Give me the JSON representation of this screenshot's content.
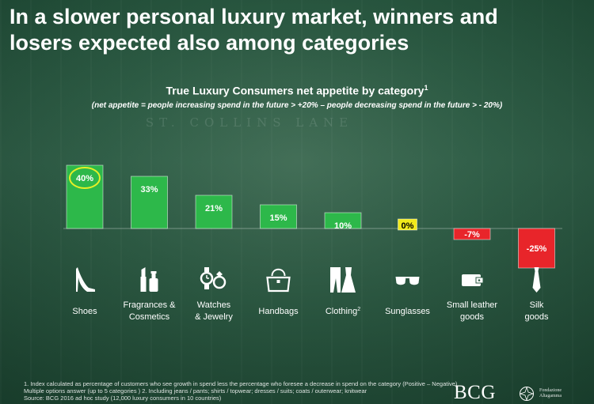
{
  "slide": {
    "title_line1": "In a slower personal luxury market, winners and",
    "title_line2": "losers expected also among categories",
    "background_text": "ST. COLLINS LANE"
  },
  "chart_data": {
    "type": "bar",
    "title": "True Luxury Consumers net appetite by category",
    "title_footnote": "1",
    "subtitle": "(net appetite = people increasing spend in the future > +20% – people decreasing spend in the future > - 20%)",
    "categories": [
      {
        "label_line1": "Shoes",
        "label_line2": "",
        "footnote": "",
        "icon": "high-heel-shoe-icon"
      },
      {
        "label_line1": "Fragrances &",
        "label_line2": "Cosmetics",
        "footnote": "",
        "icon": "lipstick-perfume-icon"
      },
      {
        "label_line1": "Watches",
        "label_line2": "& Jewelry",
        "footnote": "",
        "icon": "watch-ring-icon"
      },
      {
        "label_line1": "Handbags",
        "label_line2": "",
        "footnote": "",
        "icon": "handbag-icon"
      },
      {
        "label_line1": "Clothing",
        "label_line2": "",
        "footnote": "2",
        "icon": "jeans-dress-icon"
      },
      {
        "label_line1": "Sunglasses",
        "label_line2": "",
        "footnote": "",
        "icon": "sunglasses-icon"
      },
      {
        "label_line1": "Small leather",
        "label_line2": "goods",
        "footnote": "",
        "icon": "wallet-icon"
      },
      {
        "label_line1": "Silk",
        "label_line2": "goods",
        "footnote": "",
        "icon": "tie-icon"
      }
    ],
    "values": [
      40,
      33,
      21,
      15,
      10,
      0,
      -7,
      -25
    ],
    "value_labels": [
      "40%",
      "33%",
      "21%",
      "15%",
      "10%",
      "0%",
      "-7%",
      "-25%"
    ],
    "highlighted_value_index": 0,
    "colors": {
      "positive": "#2db84a",
      "zero": "#f2ea1a",
      "negative": "#e8252a",
      "highlight_circle": "#e6ef28"
    }
  },
  "footnotes": {
    "line1": "1. Index calculated as percentage of customers who see growth in spend less the percentage who foresee a decrease in spend on the category (Positive – Negative)",
    "line2": "Multiple options answer (up to 5 categories )   2. Including jeans / pants; shirts / topwear; dresses / suits; coats / outerwear; knitwear",
    "line3": "Source: BCG 2016 ad hoc study (12,000 luxury consumers in 10 countries)"
  },
  "logos": {
    "bcg": "BCG",
    "partner_line1": "Fondazione",
    "partner_line2": "Altagamma"
  }
}
